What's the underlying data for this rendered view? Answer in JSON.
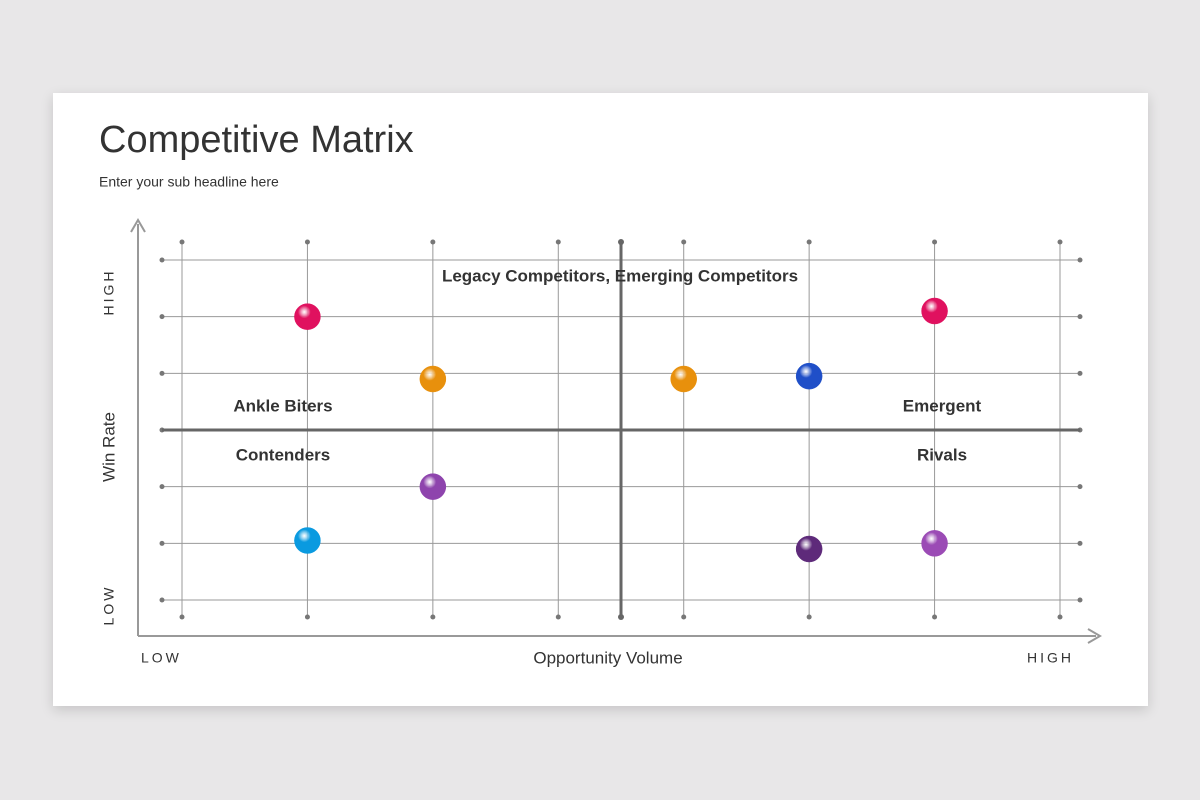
{
  "chart_data": {
    "type": "scatter",
    "title": "Competitive Matrix",
    "subtitle": "Enter your sub headline here",
    "x_label": "Opportunity Volume",
    "y_label": "Win Rate",
    "x_low": "LOW",
    "x_high": "HIGH",
    "y_low": "LOW",
    "y_high": "HIGH",
    "annotations": [
      "Legacy Competitors, Emerging Competitors",
      "Ankle Biters",
      "Emergent",
      "Contenders",
      "Rivals"
    ],
    "x": [
      1,
      2,
      4,
      5,
      6,
      2,
      1,
      5,
      6
    ],
    "values": [
      5,
      3.9,
      3.9,
      3.95,
      5.1,
      2,
      1.05,
      0.9,
      1
    ],
    "colors": [
      "#e0115f",
      "#e8900c",
      "#e8900c",
      "#1f4fc8",
      "#e0115f",
      "#8e44ad",
      "#0a9ae0",
      "#5e2a7a",
      "#9b4bb5"
    ],
    "xlim": [
      0,
      7
    ],
    "ylim": [
      0,
      6
    ],
    "xticks": [
      0,
      1,
      2,
      3,
      4,
      5,
      6,
      7
    ],
    "yticks": [
      0,
      1,
      2,
      3,
      4,
      5,
      6
    ],
    "tick_labels": false,
    "grid": true,
    "dividers": {
      "x": 3.5,
      "y": 3
    }
  }
}
